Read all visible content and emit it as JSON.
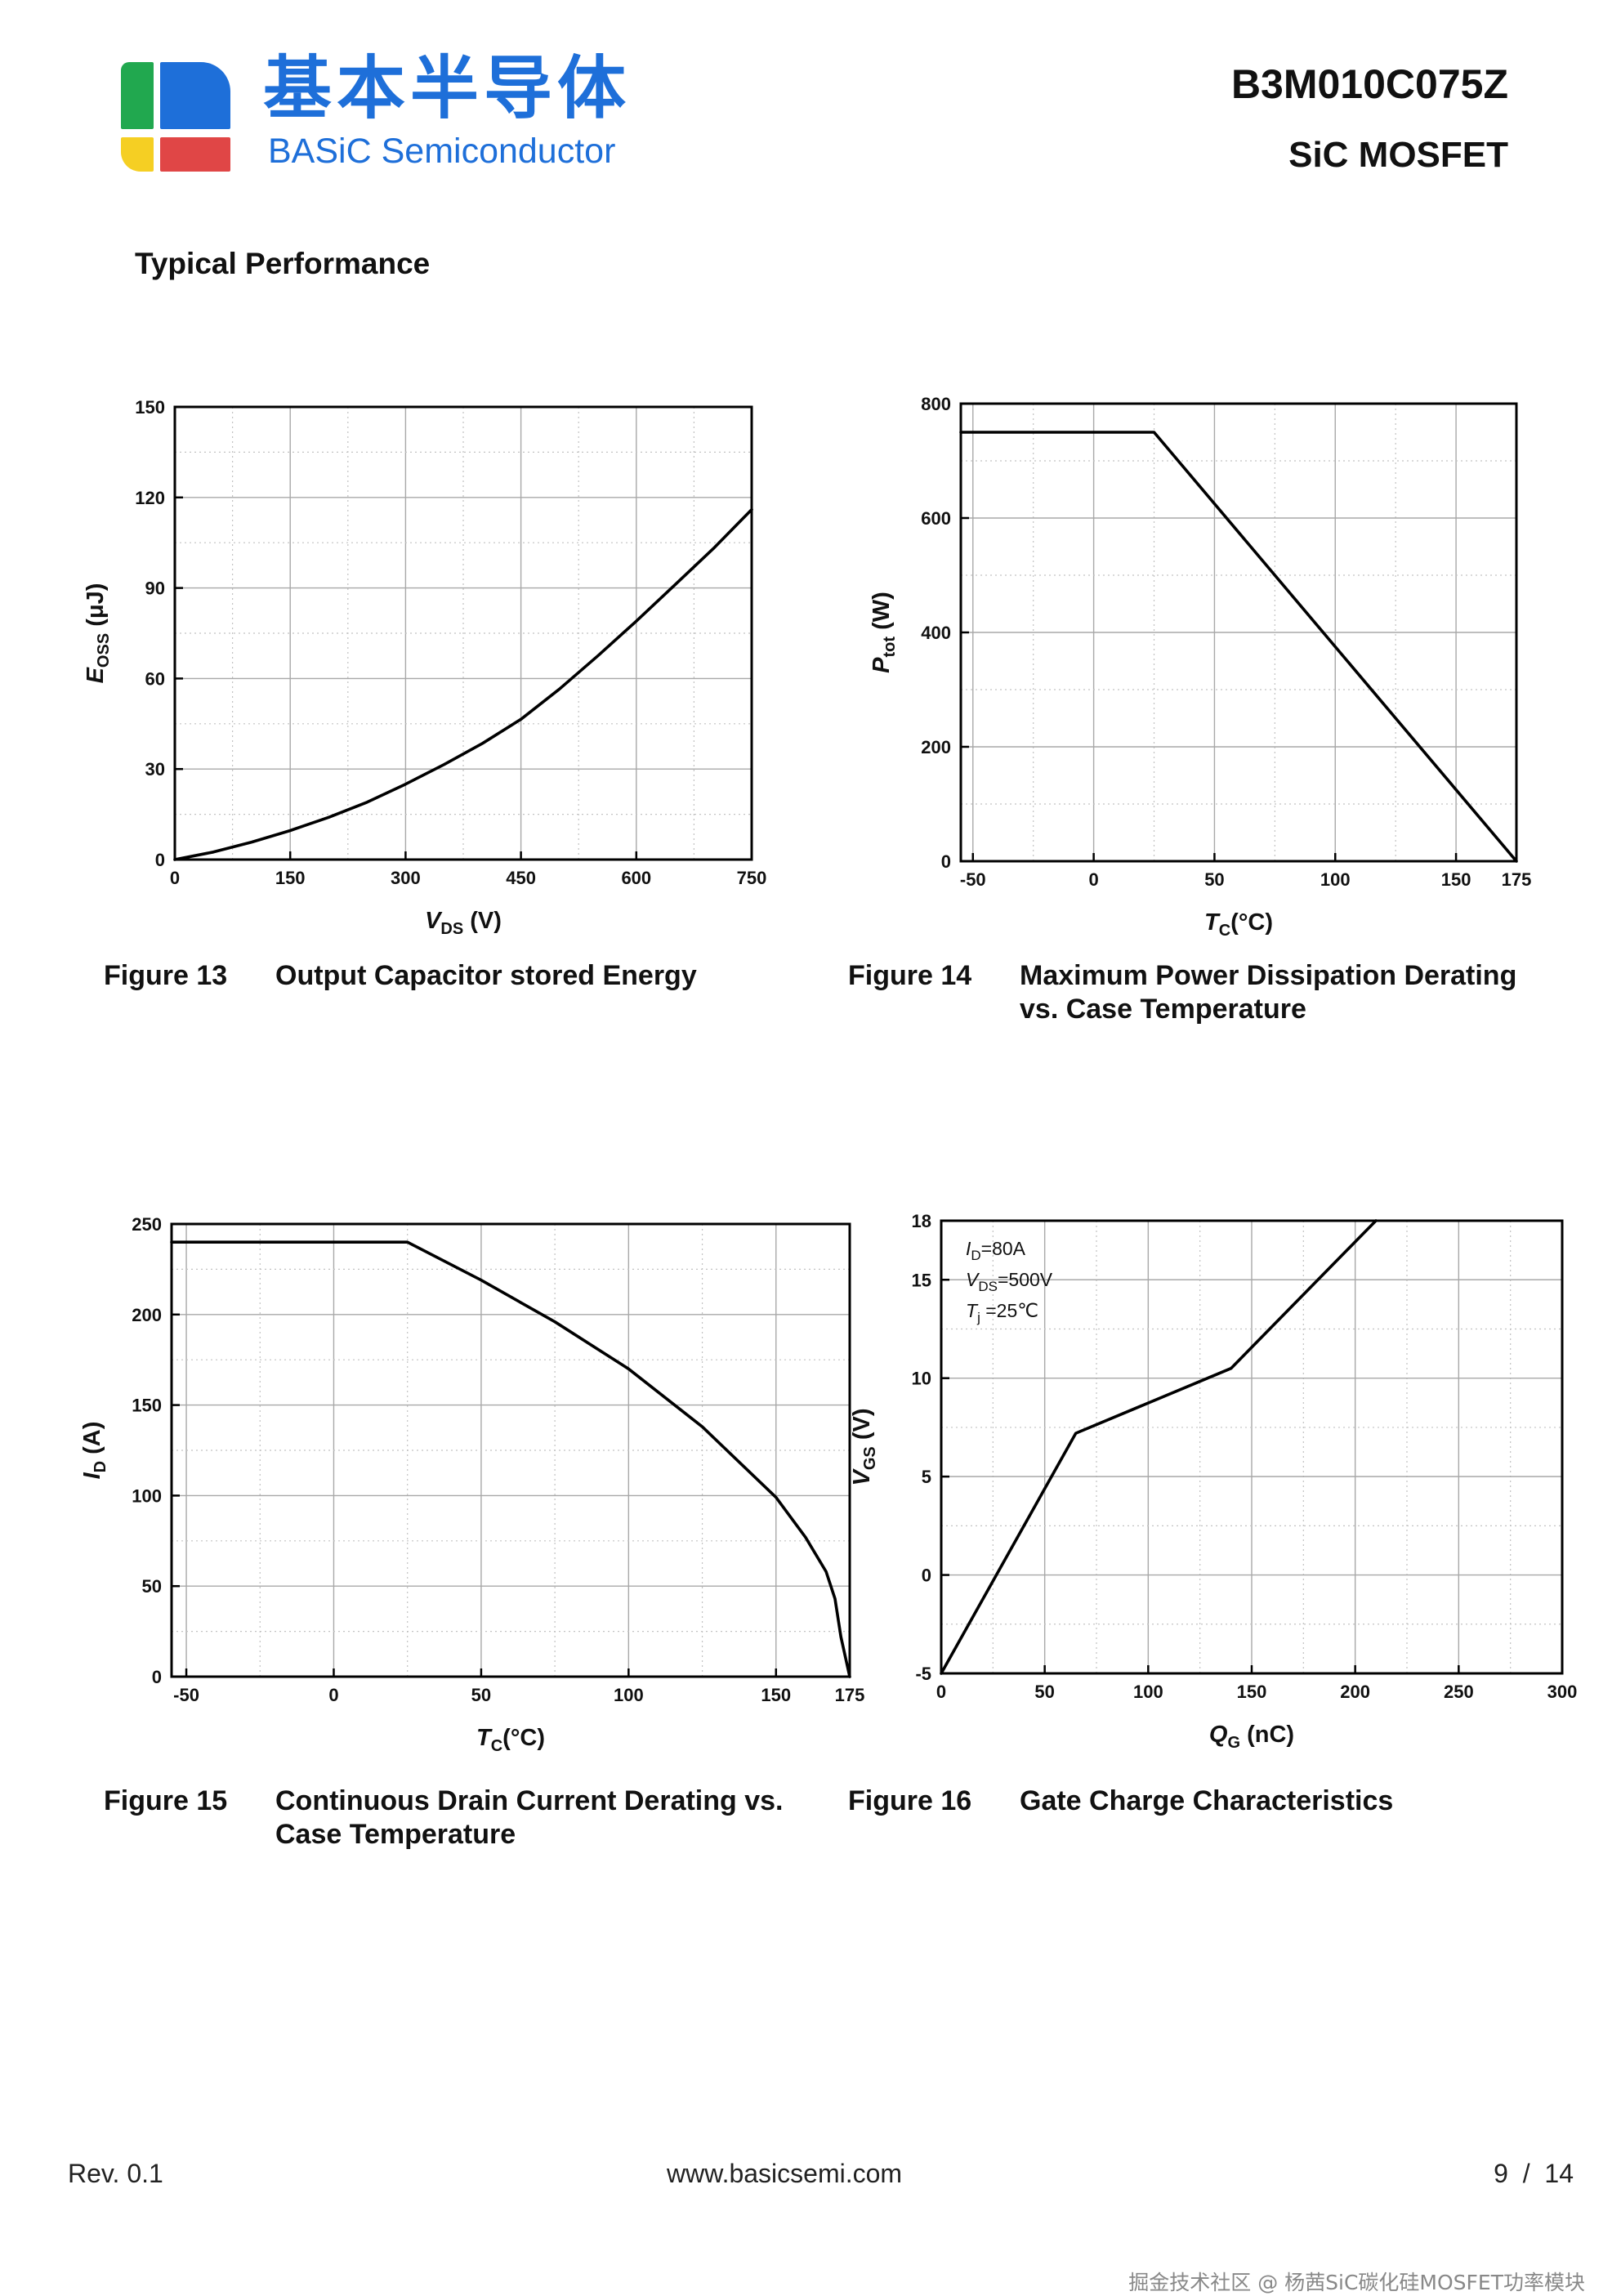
{
  "header": {
    "brand_cn": "基本半导体",
    "brand_en": "BASiC Semiconductor",
    "part_number": "B3M010C075Z",
    "part_type": "SiC MOSFET",
    "logo_colors": {
      "green": "#21a84f",
      "blue": "#1e6fd9",
      "yellow": "#f5cf23",
      "red": "#e04646"
    }
  },
  "section_title": "Typical Performance",
  "figures": [
    {
      "number": "Figure 13",
      "title": "Output Capacitor stored Energy"
    },
    {
      "number": "Figure 14",
      "title": "Maximum Power Dissipation Derating vs. Case Temperature"
    },
    {
      "number": "Figure 15",
      "title": "Continuous Drain Current Derating vs. Case Temperature"
    },
    {
      "number": "Figure 16",
      "title": "Gate Charge Characteristics"
    }
  ],
  "chart_data": [
    {
      "type": "line",
      "title": "Output Capacitor stored Energy",
      "xlabel": {
        "main": "V",
        "sub": "DS",
        "unit": " (V)",
        "italic": true
      },
      "ylabel": {
        "main": "E",
        "sub": "OSS",
        "unit": " (μJ)",
        "italic": true
      },
      "xlim": [
        0,
        750
      ],
      "ylim": [
        0,
        150
      ],
      "xticks": [
        0,
        150,
        300,
        450,
        600,
        750
      ],
      "yticks": [
        0,
        30,
        60,
        90,
        120,
        150
      ],
      "grid": true,
      "series": [
        {
          "name": "Eoss",
          "x": [
            0,
            50,
            100,
            150,
            200,
            250,
            300,
            350,
            400,
            450,
            500,
            550,
            600,
            650,
            700,
            750
          ],
          "y": [
            0,
            2.5,
            5.8,
            9.6,
            14.0,
            19.0,
            25.0,
            31.5,
            38.5,
            46.5,
            56.5,
            67.5,
            79.0,
            91.0,
            103.0,
            116.0
          ]
        }
      ]
    },
    {
      "type": "line",
      "title": "Maximum Power Dissipation Derating vs. Case Temperature",
      "xlabel": {
        "main": "T",
        "sub": "C",
        "unit": "(°C)",
        "italic": true
      },
      "ylabel": {
        "main": "P",
        "sub": "tot",
        "unit": " (W)",
        "italic": true
      },
      "xlim": [
        -55,
        175
      ],
      "ylim": [
        0,
        800
      ],
      "xticks": [
        -50,
        0,
        50,
        100,
        150,
        175
      ],
      "yticks": [
        0,
        200,
        400,
        600,
        800
      ],
      "grid": true,
      "series": [
        {
          "name": "Ptot",
          "x": [
            -55,
            25,
            175
          ],
          "y": [
            750,
            750,
            0
          ]
        }
      ]
    },
    {
      "type": "line",
      "title": "Continuous Drain Current Derating vs. Case Temperature",
      "xlabel": {
        "main": "T",
        "sub": "C",
        "unit": "(°C)",
        "italic": true
      },
      "ylabel": {
        "main": "I",
        "sub": "D",
        "unit": " (A)",
        "italic": true
      },
      "xlim": [
        -55,
        175
      ],
      "ylim": [
        0,
        250
      ],
      "xticks": [
        -50,
        0,
        50,
        100,
        150,
        175
      ],
      "yticks": [
        0,
        50,
        100,
        150,
        200,
        250
      ],
      "grid": true,
      "series": [
        {
          "name": "ID",
          "x": [
            -55,
            25,
            50,
            75,
            100,
            125,
            150,
            160,
            167,
            170,
            172,
            175
          ],
          "y": [
            240,
            240,
            219,
            196,
            170,
            138,
            99,
            77,
            58,
            43,
            22,
            0
          ]
        }
      ]
    },
    {
      "type": "line",
      "title": "Gate Charge Characteristics",
      "xlabel": {
        "main": "Q",
        "sub": "G",
        "unit": " (nC)",
        "italic": true
      },
      "ylabel": {
        "main": "V",
        "sub": "GS",
        "unit": " (V)",
        "italic": true
      },
      "xlim": [
        0,
        300
      ],
      "ylim": [
        -5,
        18
      ],
      "xticks": [
        0,
        50,
        100,
        150,
        200,
        250,
        300
      ],
      "yticks": [
        -5,
        0,
        5,
        10,
        15,
        18
      ],
      "grid": true,
      "annotations": [
        {
          "main": "I",
          "sub": "D",
          "rest": "=80A"
        },
        {
          "main": "V",
          "sub": "DS",
          "rest": "=500V"
        },
        {
          "main": "T",
          "sub": "j",
          "rest": " =25℃"
        }
      ],
      "series": [
        {
          "name": "VGS",
          "x": [
            0,
            65,
            140,
            210
          ],
          "y": [
            -5,
            7.2,
            10.5,
            18
          ]
        }
      ]
    }
  ],
  "footer": {
    "revision": "Rev. 0.1",
    "website": "www.basicsemi.com",
    "page": "9  /  14"
  },
  "watermark": "掘金技术社区 @ 杨茜SiC碳化硅MOSFET功率模块"
}
